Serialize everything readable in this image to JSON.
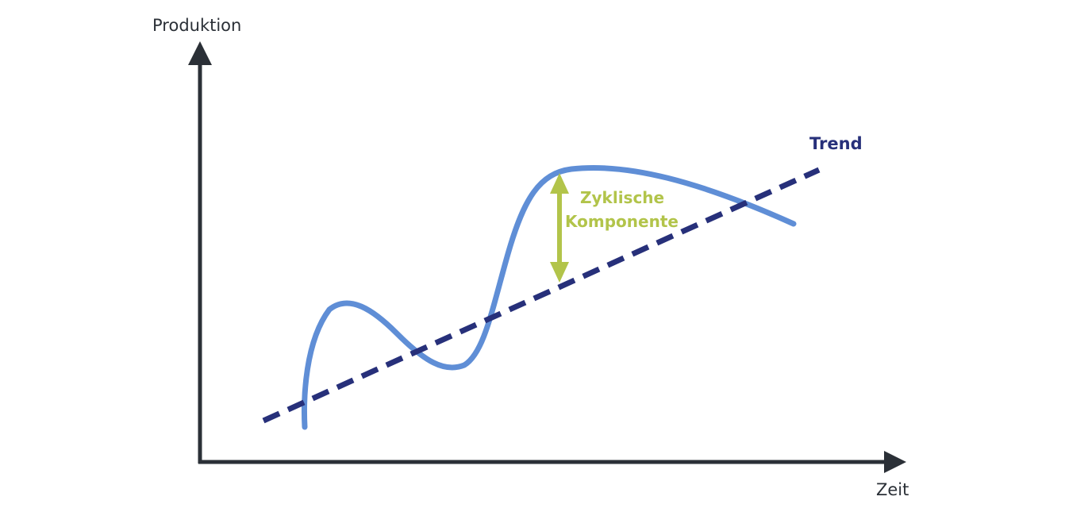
{
  "diagram": {
    "y_axis_label": "Produktion",
    "x_axis_label": "Zeit",
    "trend_label": "Trend",
    "cyclical_label_line1": "Zyklische",
    "cyclical_label_line2": "Komponente"
  },
  "colors": {
    "axis": "#2b3037",
    "trend": "#27307a",
    "cyclical_curve": "#5f8ed6",
    "cyclical_component": "#b2c44a"
  }
}
